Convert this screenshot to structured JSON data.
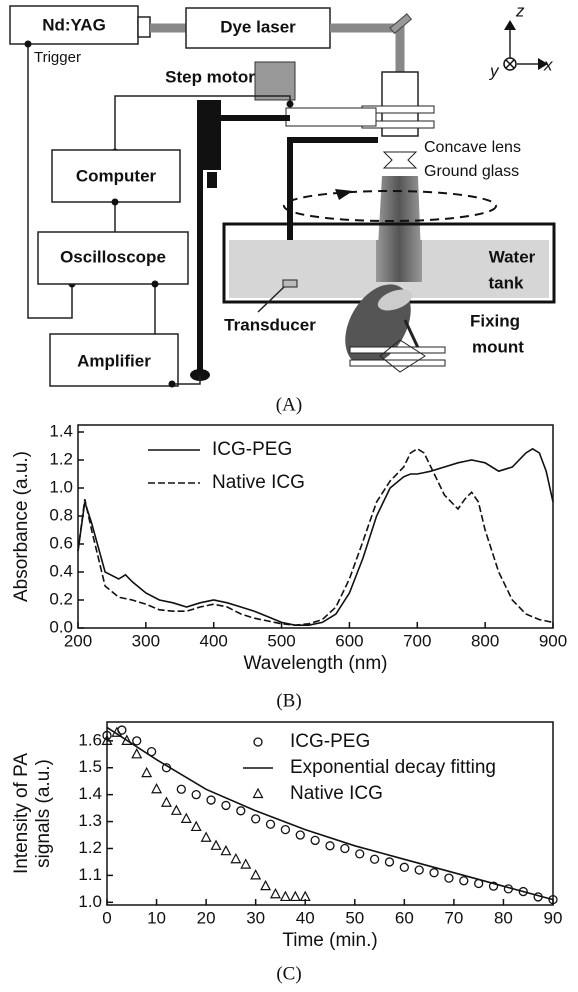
{
  "diagram": {
    "label": "(A)",
    "nd_yag": "Nd:YAG",
    "trigger": "Trigger",
    "dye_laser": "Dye laser",
    "step_motor": "Step motor",
    "computer": "Computer",
    "oscilloscope": "Oscilloscope",
    "amplifier": "Amplifier",
    "concave_lens": "Concave lens",
    "ground_glass": "Ground glass",
    "water_tank": [
      "Water",
      "tank"
    ],
    "transducer": "Transducer",
    "fixing_mount": [
      "Fixing",
      "mount"
    ],
    "axes": {
      "z": "z",
      "y": "y",
      "x": "x"
    }
  },
  "chart_data": [
    {
      "type": "line",
      "label": "(B)",
      "xlabel": "Wavelength (nm)",
      "ylabel": [
        "Absorbance (a.u.)"
      ],
      "xlim": [
        200,
        900
      ],
      "ylim": [
        0,
        1.4
      ],
      "xticks": [
        200,
        300,
        400,
        500,
        600,
        700,
        800,
        900
      ],
      "yticks": [
        {
          "value": 0,
          "label": "0.0"
        },
        0.2,
        0.4,
        0.6,
        0.8,
        {
          "value": 1,
          "label": "1.0"
        },
        1.2,
        1.4
      ],
      "legend": "upper left",
      "x": [
        200,
        210,
        220,
        240,
        260,
        270,
        280,
        300,
        320,
        340,
        360,
        380,
        400,
        420,
        440,
        460,
        480,
        500,
        520,
        540,
        560,
        580,
        600,
        620,
        640,
        660,
        680,
        690,
        700,
        710,
        720,
        740,
        760,
        770,
        780,
        790,
        800,
        820,
        840,
        860,
        870,
        880,
        890,
        900
      ],
      "series": [
        {
          "name": "ICG-PEG",
          "color": "#111111",
          "style": "solid",
          "values": [
            0.55,
            0.9,
            0.75,
            0.4,
            0.35,
            0.38,
            0.33,
            0.25,
            0.2,
            0.18,
            0.15,
            0.18,
            0.2,
            0.18,
            0.15,
            0.12,
            0.08,
            0.04,
            0.02,
            0.02,
            0.04,
            0.1,
            0.25,
            0.5,
            0.8,
            1.0,
            1.08,
            1.1,
            1.1,
            1.11,
            1.12,
            1.15,
            1.18,
            1.19,
            1.2,
            1.19,
            1.18,
            1.12,
            1.15,
            1.25,
            1.28,
            1.25,
            1.12,
            0.9
          ]
        },
        {
          "name": "Native ICG",
          "color": "#111111",
          "style": "dashed",
          "values": [
            0.55,
            0.92,
            0.7,
            0.3,
            0.22,
            0.21,
            0.2,
            0.17,
            0.13,
            0.12,
            0.12,
            0.15,
            0.17,
            0.15,
            0.1,
            0.07,
            0.05,
            0.03,
            0.02,
            0.03,
            0.06,
            0.15,
            0.35,
            0.62,
            0.9,
            1.05,
            1.15,
            1.25,
            1.28,
            1.25,
            1.15,
            0.95,
            0.85,
            0.92,
            0.97,
            0.9,
            0.7,
            0.4,
            0.2,
            0.1,
            0.08,
            0.06,
            0.05,
            0.04
          ]
        }
      ]
    },
    {
      "type": "scatter",
      "label": "(C)",
      "xlabel": "Time (min.)",
      "ylabel": [
        "Intensity of PA",
        "signals (a.u.)"
      ],
      "xlim": [
        0,
        90
      ],
      "ylim": [
        0.99,
        1.67
      ],
      "xticks": [
        0,
        10,
        20,
        30,
        40,
        50,
        60,
        70,
        80,
        90
      ],
      "yticks": [
        {
          "value": 1,
          "label": "1.0"
        },
        1.1,
        1.2,
        1.3,
        1.4,
        1.5,
        1.6
      ],
      "legend": "upper right",
      "series": [
        {
          "name": "ICG-PEG",
          "color": "#111111",
          "style": "circle",
          "x": [
            0,
            3,
            6,
            9,
            12,
            15,
            18,
            21,
            24,
            27,
            30,
            33,
            36,
            39,
            42,
            45,
            48,
            51,
            54,
            57,
            60,
            63,
            66,
            69,
            72,
            75,
            78,
            81,
            84,
            87,
            90
          ],
          "values": [
            1.62,
            1.64,
            1.6,
            1.56,
            1.5,
            1.42,
            1.4,
            1.38,
            1.36,
            1.34,
            1.31,
            1.29,
            1.27,
            1.25,
            1.23,
            1.21,
            1.2,
            1.18,
            1.16,
            1.15,
            1.13,
            1.12,
            1.11,
            1.09,
            1.08,
            1.07,
            1.06,
            1.05,
            1.04,
            1.02,
            1.01
          ]
        },
        {
          "name": "Exponential decay fitting",
          "color": "#111111",
          "style": "solid",
          "x": [
            0,
            10,
            20,
            30,
            40,
            50,
            60,
            70,
            80,
            90
          ],
          "values": [
            1.65,
            1.53,
            1.42,
            1.34,
            1.27,
            1.21,
            1.16,
            1.11,
            1.06,
            1.01
          ]
        },
        {
          "name": "Native ICG",
          "color": "#111111",
          "style": "triangle",
          "x": [
            0,
            2,
            4,
            6,
            8,
            10,
            12,
            14,
            16,
            18,
            20,
            22,
            24,
            26,
            28,
            30,
            32,
            34,
            36,
            38,
            40
          ],
          "values": [
            1.6,
            1.63,
            1.6,
            1.55,
            1.48,
            1.42,
            1.37,
            1.34,
            1.31,
            1.28,
            1.24,
            1.21,
            1.19,
            1.16,
            1.14,
            1.1,
            1.06,
            1.03,
            1.02,
            1.02,
            1.02
          ]
        }
      ]
    }
  ]
}
